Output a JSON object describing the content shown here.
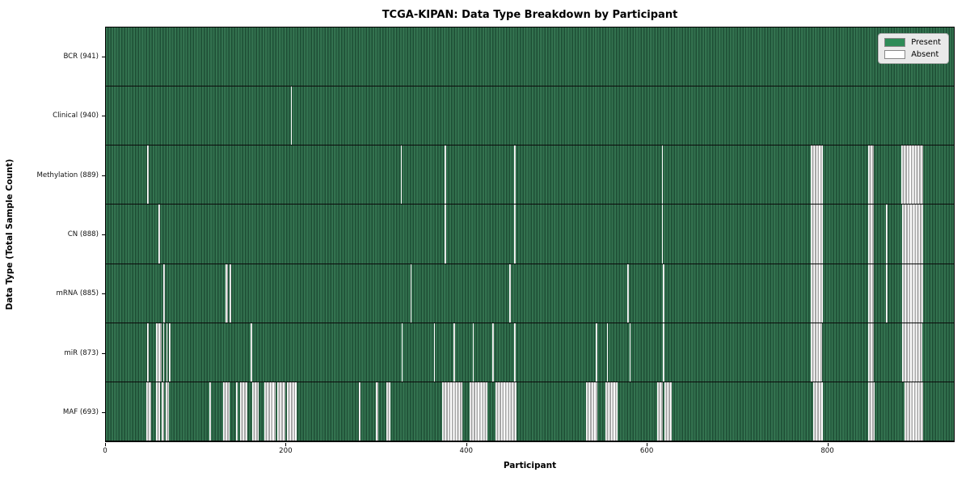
{
  "chart_data": {
    "type": "heatmap",
    "title": "TCGA-KIPAN: Data Type Breakdown by Participant",
    "xlabel": "Participant",
    "ylabel": "Data Type (Total Sample Count)",
    "x_max": 941,
    "x_ticks": [
      0,
      200,
      400,
      600,
      800
    ],
    "grid": false,
    "legend_position": "upper right",
    "legend": [
      {
        "label": "Present",
        "color": "#2e8b57"
      },
      {
        "label": "Absent",
        "color": "#ffffff"
      }
    ],
    "colors": {
      "present": "#2e8b57",
      "present_stripe_light": "#33724f",
      "present_stripe_dark": "#1e4e35",
      "absent_white": "#ffffff",
      "absent_edge": "#a5a5a5",
      "row_divider": "#0b0b0b"
    },
    "rows": [
      {
        "label": "BCR (941)",
        "data_type": "BCR",
        "present_count": 941,
        "absent_ranges": []
      },
      {
        "label": "Clinical (940)",
        "data_type": "Clinical",
        "present_count": 940,
        "absent_ranges": [
          [
            205,
            1.5
          ]
        ]
      },
      {
        "label": "Methylation (889)",
        "data_type": "Methylation",
        "present_count": 889,
        "absent_ranges": [
          [
            46,
            1.5
          ],
          [
            327,
            1.5
          ],
          [
            376,
            1.5
          ],
          [
            453,
            1.5
          ],
          [
            617,
            1.5
          ],
          [
            782,
            14
          ],
          [
            846,
            6
          ],
          [
            883,
            24
          ]
        ]
      },
      {
        "label": "CN (888)",
        "data_type": "CN",
        "present_count": 888,
        "absent_ranges": [
          [
            58,
            2.5
          ],
          [
            376,
            1.5
          ],
          [
            453,
            1.5
          ],
          [
            617,
            1.5
          ],
          [
            782,
            14
          ],
          [
            846,
            6
          ],
          [
            866,
            1.5
          ],
          [
            884,
            23
          ]
        ]
      },
      {
        "label": "mRNA (885)",
        "data_type": "mRNA",
        "present_count": 885,
        "absent_ranges": [
          [
            64,
            1.5
          ],
          [
            133,
            2.5
          ],
          [
            137.5,
            1.5
          ],
          [
            338,
            1.5
          ],
          [
            448,
            1.5
          ],
          [
            579,
            1.5
          ],
          [
            618,
            1.5
          ],
          [
            782,
            14
          ],
          [
            846,
            6
          ],
          [
            866,
            1.5
          ],
          [
            884,
            23
          ]
        ]
      },
      {
        "label": "miR (873)",
        "data_type": "miR",
        "present_count": 873,
        "absent_ranges": [
          [
            46,
            1.5
          ],
          [
            56,
            6
          ],
          [
            63.5,
            1.5
          ],
          [
            67,
            1.5
          ],
          [
            70,
            1.5
          ],
          [
            161,
            1.5
          ],
          [
            328,
            1.5
          ],
          [
            364,
            1.5
          ],
          [
            386,
            1.5
          ],
          [
            407,
            1.5
          ],
          [
            429,
            1.5
          ],
          [
            453,
            1.5
          ],
          [
            544,
            1.5
          ],
          [
            556,
            1.5
          ],
          [
            581,
            1.5
          ],
          [
            618,
            1.5
          ],
          [
            782,
            13
          ],
          [
            846,
            6
          ],
          [
            884,
            22
          ]
        ]
      },
      {
        "label": "MAF (693)",
        "data_type": "MAF",
        "present_count": 693,
        "absent_ranges": [
          [
            45,
            5
          ],
          [
            56,
            4
          ],
          [
            61.5,
            3
          ],
          [
            66.5,
            3.5
          ],
          [
            115,
            1.5
          ],
          [
            130,
            7
          ],
          [
            144,
            2
          ],
          [
            149,
            8
          ],
          [
            162,
            8
          ],
          [
            176,
            12
          ],
          [
            190,
            9
          ],
          [
            201,
            11
          ],
          [
            281,
            1.5
          ],
          [
            300,
            2
          ],
          [
            311,
            5
          ],
          [
            373,
            23
          ],
          [
            404,
            19
          ],
          [
            432,
            24
          ],
          [
            533,
            12
          ],
          [
            554,
            14
          ],
          [
            612,
            6
          ],
          [
            620,
            8
          ],
          [
            785,
            11
          ],
          [
            846,
            7
          ],
          [
            886,
            21
          ]
        ]
      }
    ]
  }
}
